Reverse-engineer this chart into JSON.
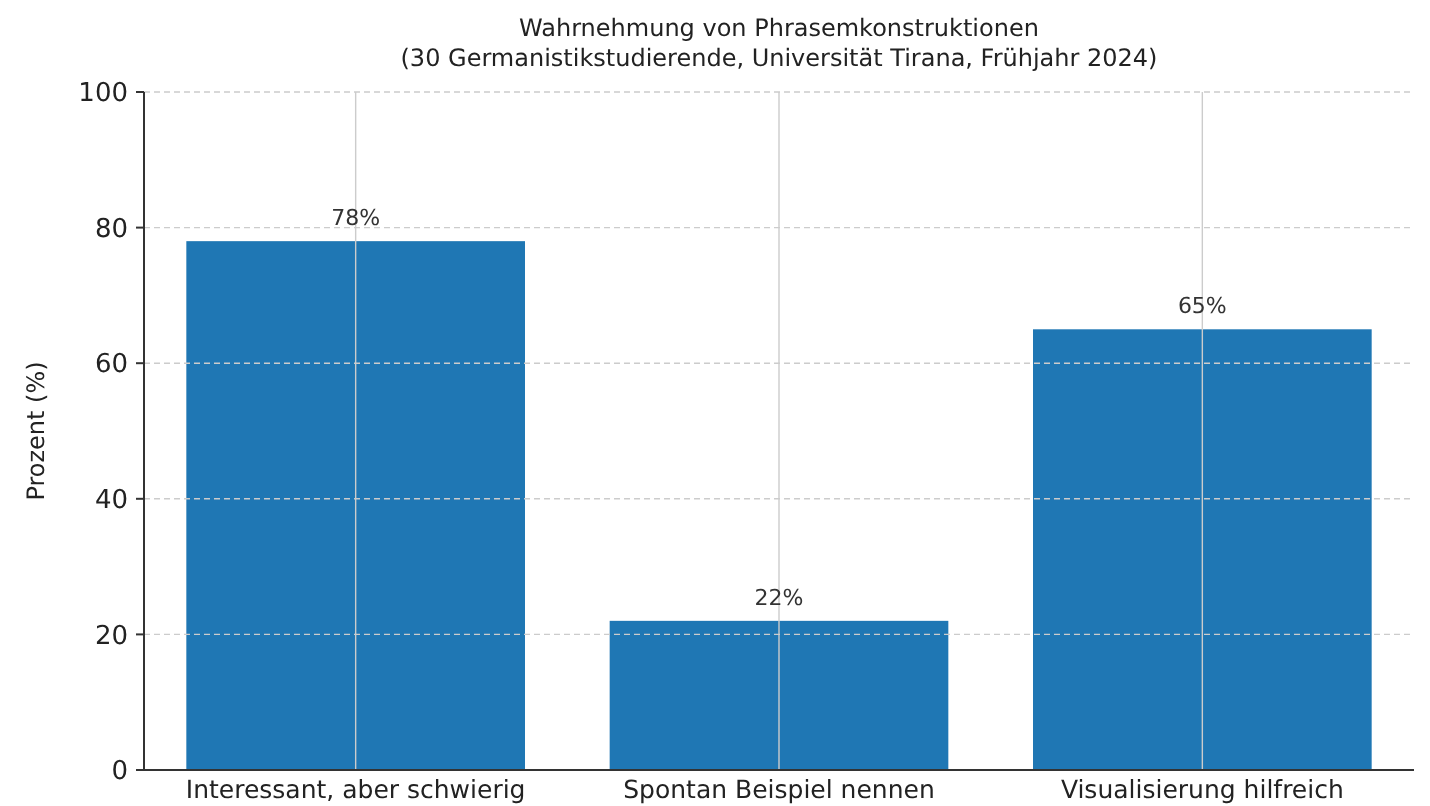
{
  "chart_data": {
    "type": "bar",
    "title": "Wahrnehmung von Phrasemkonstruktionen",
    "subtitle": "(30 Germanistikstudierende, Universität Tirana, Frühjahr 2024)",
    "ylabel": "Prozent (%)",
    "categories": [
      "Interessant, aber schwierig",
      "Spontan Beispiel nennen",
      "Visualisierung hilfreich"
    ],
    "values": [
      78,
      22,
      65
    ],
    "value_labels": [
      "78%",
      "22%",
      "65%"
    ],
    "color": "#1f77b4",
    "ylim": [
      0,
      100
    ],
    "yticks": [
      0,
      20,
      40,
      60,
      80,
      100
    ],
    "grid": true
  }
}
